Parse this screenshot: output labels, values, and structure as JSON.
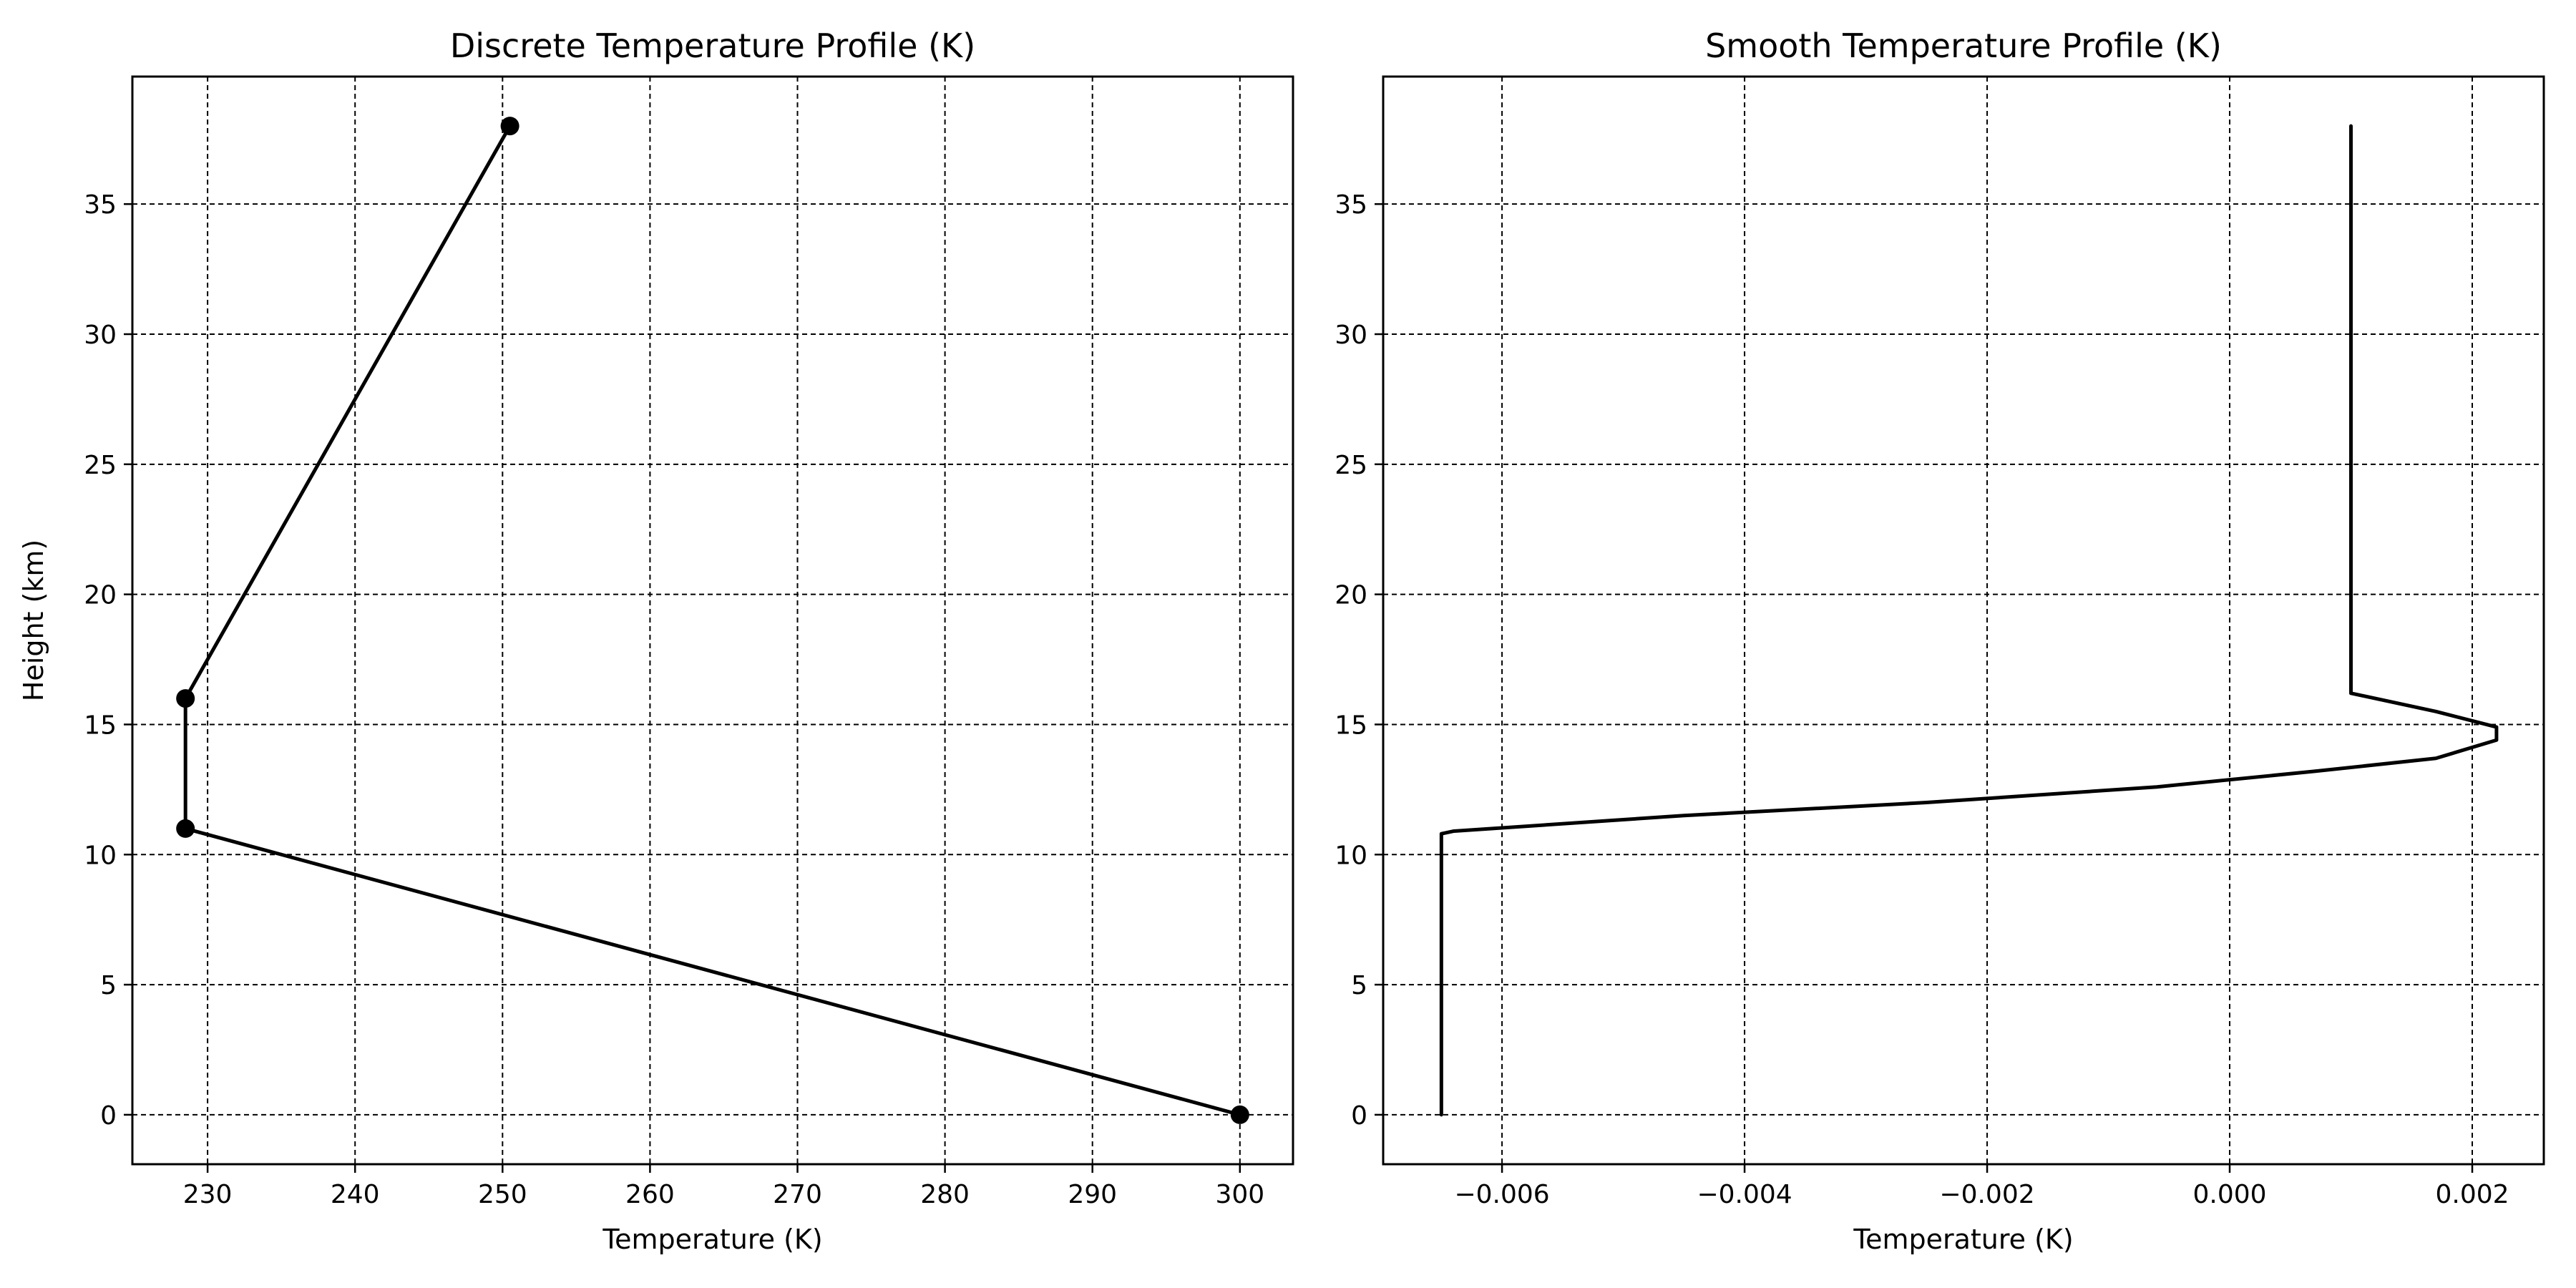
{
  "chart_data": [
    {
      "type": "line",
      "title": "Discrete Temperature Profile (K)",
      "xlabel": "Temperature (K)",
      "ylabel": "Height (km)",
      "xlim": [
        224.9,
        303.6
      ],
      "ylim": [
        -1.9,
        39.9
      ],
      "xticks": [
        230,
        240,
        250,
        260,
        270,
        280,
        290,
        300
      ],
      "yticks": [
        0,
        5,
        10,
        15,
        20,
        25,
        30,
        35
      ],
      "grid": true,
      "markers": true,
      "series": [
        {
          "color": "#000000",
          "points": [
            {
              "x": 300.0,
              "y": 0
            },
            {
              "x": 228.5,
              "y": 11
            },
            {
              "x": 228.5,
              "y": 16
            },
            {
              "x": 250.5,
              "y": 38
            }
          ]
        }
      ]
    },
    {
      "type": "line",
      "title": "Smooth Temperature Profile (K)",
      "xlabel": "Temperature (K)",
      "ylabel": "",
      "xlim": [
        -0.00698,
        0.00259
      ],
      "ylim": [
        -1.9,
        39.9
      ],
      "xticks": [
        -0.006,
        -0.004,
        -0.002,
        0.0,
        0.002
      ],
      "xtick_labels": [
        "−0.006",
        "−0.004",
        "−0.002",
        "0.000",
        "0.002"
      ],
      "yticks": [
        0,
        5,
        10,
        15,
        20,
        25,
        30,
        35
      ],
      "grid": true,
      "markers": false,
      "series": [
        {
          "color": "#000000",
          "points": [
            {
              "x": -0.0065,
              "y": 0
            },
            {
              "x": -0.0065,
              "y": 10.8
            },
            {
              "x": -0.0064,
              "y": 10.9
            },
            {
              "x": -0.0045,
              "y": 11.5
            },
            {
              "x": -0.0025,
              "y": 12.0
            },
            {
              "x": -0.0006,
              "y": 12.6
            },
            {
              "x": 0.0007,
              "y": 13.2
            },
            {
              "x": 0.0017,
              "y": 13.7
            },
            {
              "x": 0.0022,
              "y": 14.4
            },
            {
              "x": 0.0022,
              "y": 14.9
            },
            {
              "x": 0.0017,
              "y": 15.5
            },
            {
              "x": 0.001,
              "y": 16.2
            },
            {
              "x": 0.001,
              "y": 38
            }
          ]
        }
      ]
    }
  ]
}
